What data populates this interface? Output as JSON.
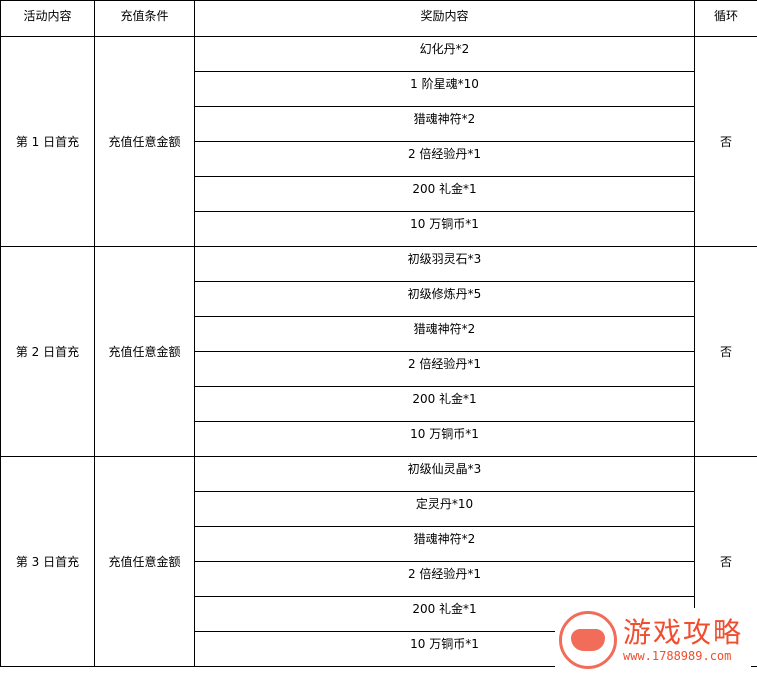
{
  "headers": [
    "活动内容",
    "充值条件",
    "奖励内容",
    "循环"
  ],
  "groups": [
    {
      "activity": "第 1 日首充",
      "condition": "充值任意金额",
      "rewards": [
        "幻化丹*2",
        "1 阶星魂*10",
        "猎魂神符*2",
        "2 倍经验丹*1",
        "200 礼金*1",
        "10 万铜币*1"
      ],
      "loop": "否"
    },
    {
      "activity": "第 2 日首充",
      "condition": "充值任意金额",
      "rewards": [
        "初级羽灵石*3",
        "初级修炼丹*5",
        "猎魂神符*2",
        "2 倍经验丹*1",
        "200 礼金*1",
        "10 万铜币*1"
      ],
      "loop": "否"
    },
    {
      "activity": "第 3 日首充",
      "condition": "充值任意金额",
      "rewards": [
        "初级仙灵晶*3",
        "定灵丹*10",
        "猎魂神符*2",
        "2 倍经验丹*1",
        "200 礼金*1",
        "10 万铜币*1"
      ],
      "loop": "否"
    }
  ],
  "watermark": {
    "title": "游戏攻略",
    "url": "www.1788989.com",
    "color": "#f04e2e",
    "icon": "gamepad-icon"
  }
}
